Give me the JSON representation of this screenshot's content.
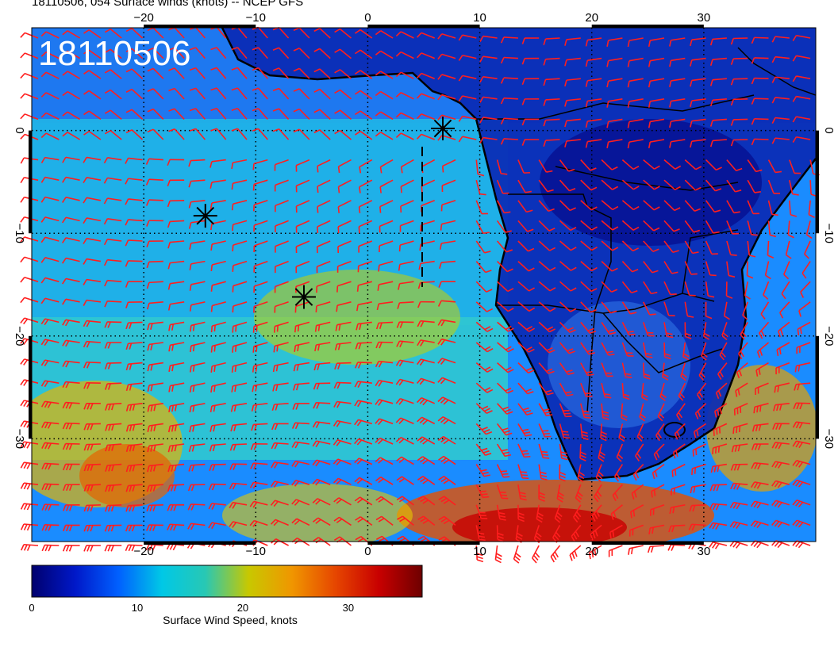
{
  "header": {
    "title": "18110506, 054 Surface winds (knots) -- NCEP GFS",
    "stamp": "18110506"
  },
  "map": {
    "projection": "cylindrical",
    "lon_range": [
      -30,
      40
    ],
    "lat_range": [
      -40,
      10
    ],
    "lon_ticks": [
      "−20",
      "−10",
      "0",
      "10",
      "20",
      "30"
    ],
    "lat_ticks": [
      "0",
      "−10",
      "−20",
      "−30"
    ],
    "grid": true,
    "barb_color": "#ff1e1e",
    "coast_color": "#000000",
    "markers": [
      {
        "name": "asterisk",
        "lon": -14.5,
        "lat": -8.3
      },
      {
        "name": "asterisk",
        "lon": -5.7,
        "lat": -16.2
      },
      {
        "name": "asterisk",
        "lon": 6.7,
        "lat": 0.2
      }
    ]
  },
  "colorbar": {
    "title": "Surface Wind Speed, knots",
    "ticks": [
      "0",
      "10",
      "20",
      "30"
    ],
    "range": [
      0,
      37
    ],
    "colors": [
      "#00006e",
      "#0018c8",
      "#0060ff",
      "#00c8e6",
      "#28c8b4",
      "#c8c800",
      "#f09600",
      "#e64600",
      "#c80000",
      "#6e0000"
    ]
  }
}
